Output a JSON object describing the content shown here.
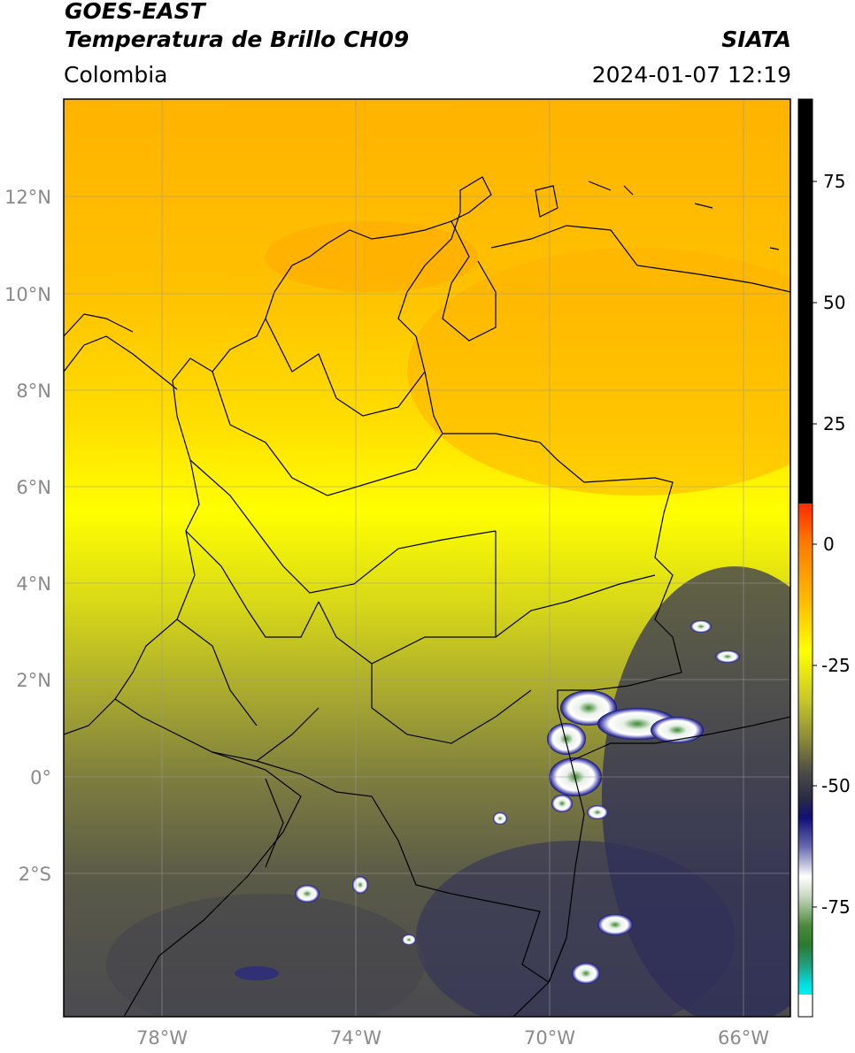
{
  "header": {
    "title_line1": "GOES-EAST",
    "title_line2": "Temperatura de Brillo CH09",
    "brand": "SIATA",
    "region": "Colombia",
    "datetime": "2024-01-07 12:19"
  },
  "map": {
    "lat_labels": [
      "12°N",
      "10°N",
      "8°N",
      "6°N",
      "4°N",
      "2°N",
      "0°",
      "2°S"
    ],
    "lon_labels": [
      "78°W",
      "74°W",
      "70°W",
      "66°W"
    ]
  },
  "colorbar": {
    "tick_labels": [
      "75",
      "50",
      "25",
      "0",
      "-25",
      "-50",
      "-75"
    ],
    "colors": {
      "top": "#000000",
      "red": "#e8200a",
      "orange": "#ffa500",
      "yellow": "#ffff00",
      "olive": "#9a9a30",
      "gray": "#3a3a40",
      "navy": "#101070",
      "white": "#ffffff",
      "green": "#2c8a2c",
      "teal": "#20b090",
      "cyan": "#00e8e8"
    }
  }
}
